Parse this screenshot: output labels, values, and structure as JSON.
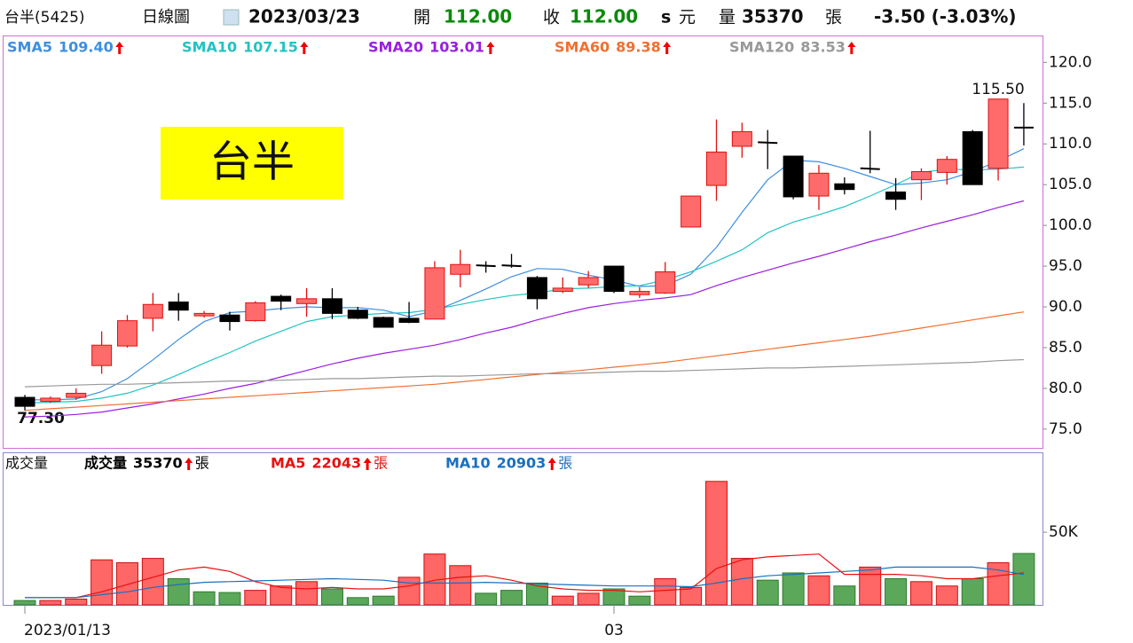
{
  "header": {
    "stock": "台半(5425)",
    "period": "日線圖",
    "date": "2023/03/23",
    "open_label": "開",
    "open": "112.00",
    "close_label": "收",
    "close": "112.00",
    "s": "s",
    "currency": "元",
    "volume_label": "量",
    "volume": "35370",
    "volume_unit": "張",
    "change": "-3.50 (-3.03%)"
  },
  "annotation": {
    "title": "台半",
    "high_label": "115.50",
    "low_label": "77.30"
  },
  "chart_data": [
    {
      "type": "candlestick",
      "up_color": "#ff6b6b",
      "up_border": "#e01010",
      "down_color": "#000000",
      "ylim": [
        72.7,
        123.3
      ],
      "yticks": [
        {
          "value": 75,
          "label": "75.0"
        },
        {
          "value": 80,
          "label": "80.0"
        },
        {
          "value": 85,
          "label": "85.0"
        },
        {
          "value": 90,
          "label": "90.0"
        },
        {
          "value": 95,
          "label": "95.0"
        },
        {
          "value": 100,
          "label": "100.0"
        },
        {
          "value": 105,
          "label": "105.0"
        },
        {
          "value": 110,
          "label": "110.0"
        },
        {
          "value": 115,
          "label": "115.0"
        },
        {
          "value": 120,
          "label": "120.0"
        }
      ],
      "open": [
        78.9,
        78.4,
        78.9,
        82.8,
        85.2,
        88.6,
        90.6,
        88.9,
        89.0,
        88.3,
        91.3,
        90.4,
        91.0,
        89.6,
        88.7,
        88.6,
        88.5,
        94.0,
        95.1,
        95.1,
        93.6,
        91.9,
        92.7,
        95.0,
        91.5,
        91.7,
        99.8,
        104.9,
        109.7,
        110.2,
        108.5,
        103.6,
        105.1,
        107.0,
        104.1,
        105.6,
        106.5,
        111.5,
        107.0,
        112.0
      ],
      "high": [
        79.2,
        79.0,
        80.0,
        87.0,
        89.0,
        91.7,
        91.7,
        89.5,
        89.4,
        90.7,
        91.5,
        92.3,
        92.3,
        90.0,
        88.8,
        90.6,
        95.6,
        97.0,
        95.6,
        96.5,
        93.8,
        93.6,
        94.4,
        95.0,
        92.4,
        95.5,
        103.6,
        113.0,
        112.6,
        111.7,
        108.5,
        107.4,
        105.9,
        111.6,
        105.8,
        107.0,
        108.5,
        111.7,
        115.5,
        115.0
      ],
      "low": [
        77.3,
        78.2,
        78.6,
        81.8,
        85.0,
        87.0,
        88.3,
        88.7,
        87.1,
        88.2,
        89.6,
        88.8,
        88.5,
        88.5,
        87.5,
        88.0,
        88.5,
        92.4,
        94.2,
        94.8,
        89.7,
        91.7,
        92.3,
        91.7,
        91.1,
        91.6,
        99.8,
        103.0,
        108.3,
        106.9,
        103.2,
        101.9,
        103.8,
        106.4,
        101.9,
        103.1,
        105.0,
        105.0,
        105.5,
        109.8
      ],
      "close": [
        77.8,
        78.8,
        79.4,
        85.3,
        88.3,
        90.3,
        89.6,
        89.2,
        88.2,
        90.5,
        90.7,
        91.0,
        89.2,
        88.6,
        87.5,
        88.1,
        94.8,
        95.2,
        95.0,
        95.0,
        91.0,
        92.3,
        93.6,
        91.9,
        91.9,
        94.3,
        103.6,
        109.0,
        111.5,
        110.1,
        103.5,
        106.4,
        104.4,
        106.9,
        103.2,
        106.6,
        108.1,
        105.0,
        115.5,
        112.0
      ],
      "series": [
        {
          "name": "SMA5",
          "color": "#3d8fe0",
          "last_label": "109.40",
          "values": [
            78.6,
            78.6,
            78.7,
            79.6,
            81.2,
            83.5,
            86.0,
            88.2,
            89.3,
            89.5,
            89.8,
            90.0,
            89.9,
            89.9,
            89.6,
            88.8,
            89.5,
            90.8,
            92.2,
            93.7,
            94.7,
            94.6,
            93.9,
            93.3,
            92.5,
            92.6,
            94.0,
            97.3,
            101.6,
            105.6,
            108.0,
            107.8,
            107.0,
            106.0,
            105.0,
            105.2,
            105.6,
            106.6,
            107.9,
            109.4
          ]
        },
        {
          "name": "SMA10",
          "color": "#22c3c3",
          "last_label": "107.15",
          "values": [
            78.2,
            78.3,
            78.4,
            78.8,
            79.4,
            80.4,
            81.7,
            83.1,
            84.4,
            85.8,
            87.0,
            88.2,
            88.8,
            89.0,
            89.2,
            89.3,
            89.7,
            90.3,
            90.9,
            91.4,
            91.7,
            92.2,
            92.3,
            92.5,
            92.6,
            93.3,
            94.3,
            95.6,
            97.0,
            99.1,
            100.4,
            101.3,
            102.3,
            103.6,
            105.0,
            106.5,
            106.9,
            106.8,
            106.9,
            107.15
          ]
        },
        {
          "name": "SMA20",
          "color": "#9a1ee0",
          "last_label": "103.01",
          "values": [
            76.5,
            76.6,
            76.8,
            77.1,
            77.6,
            78.1,
            78.7,
            79.3,
            80.0,
            80.6,
            81.4,
            82.2,
            83.0,
            83.7,
            84.3,
            84.8,
            85.3,
            86.0,
            86.8,
            87.5,
            88.4,
            89.2,
            89.9,
            90.4,
            90.8,
            91.1,
            91.5,
            92.6,
            93.6,
            94.5,
            95.4,
            96.2,
            97.1,
            98.0,
            98.8,
            99.7,
            100.5,
            101.3,
            102.2,
            103.01
          ]
        },
        {
          "name": "SMA60",
          "color": "#f07030",
          "last_label": "89.38",
          "values": [
            77.3,
            77.5,
            77.7,
            77.9,
            78.1,
            78.3,
            78.5,
            78.7,
            78.9,
            79.1,
            79.3,
            79.5,
            79.7,
            79.9,
            80.1,
            80.3,
            80.5,
            80.8,
            81.1,
            81.4,
            81.7,
            82.0,
            82.3,
            82.6,
            82.9,
            83.2,
            83.6,
            84.0,
            84.4,
            84.8,
            85.2,
            85.6,
            86.0,
            86.4,
            86.9,
            87.4,
            87.9,
            88.4,
            88.9,
            89.38
          ]
        },
        {
          "name": "SMA120",
          "color": "#999999",
          "last_label": "83.53",
          "values": [
            80.2,
            80.3,
            80.4,
            80.5,
            80.5,
            80.6,
            80.7,
            80.8,
            80.9,
            80.9,
            81.0,
            81.1,
            81.2,
            81.2,
            81.3,
            81.4,
            81.5,
            81.5,
            81.6,
            81.7,
            81.8,
            81.8,
            81.9,
            82.0,
            82.1,
            82.1,
            82.2,
            82.3,
            82.4,
            82.5,
            82.5,
            82.6,
            82.7,
            82.8,
            82.9,
            83.0,
            83.1,
            83.2,
            83.4,
            83.53
          ]
        }
      ]
    },
    {
      "type": "bar",
      "panel_label": "成交量",
      "categories": [
        "2023/01/13",
        null,
        null,
        null,
        null,
        null,
        null,
        null,
        null,
        null,
        null,
        null,
        null,
        null,
        null,
        null,
        null,
        null,
        null,
        null,
        null,
        null,
        null,
        "03",
        null,
        null,
        null,
        null,
        null,
        null,
        null,
        null,
        null,
        null,
        null,
        null,
        null,
        null,
        null,
        null
      ],
      "ylim": [
        0,
        105000
      ],
      "yticks": [
        {
          "value": 50000,
          "label": "50K"
        }
      ],
      "colors": [
        "#5ba85b",
        "#ff6666",
        "#ff6666",
        "#ff6666",
        "#ff6666",
        "#ff6666",
        "#5ba85b",
        "#5ba85b",
        "#5ba85b",
        "#ff6666",
        "#ff6666",
        "#ff6666",
        "#5ba85b",
        "#5ba85b",
        "#5ba85b",
        "#ff6666",
        "#ff6666",
        "#ff6666",
        "#5ba85b",
        "#5ba85b",
        "#5ba85b",
        "#ff6666",
        "#ff6666",
        "#5ba85b",
        "#5ba85b",
        "#ff6666",
        "#ff6666",
        "#ff6666",
        "#ff6666",
        "#5ba85b",
        "#5ba85b",
        "#ff6666",
        "#5ba85b",
        "#ff6666",
        "#5ba85b",
        "#ff6666",
        "#ff6666",
        "#5ba85b",
        "#ff6666",
        "#5ba85b"
      ],
      "series": [
        {
          "name": "成交量",
          "color": "#000000",
          "last_label": "35370",
          "unit": "張",
          "values": [
            3000,
            3000,
            4000,
            31000,
            29000,
            32000,
            18000,
            9000,
            8500,
            10000,
            13000,
            16000,
            11000,
            5000,
            6000,
            19000,
            35000,
            27000,
            8000,
            10000,
            15000,
            6000,
            8000,
            11000,
            6000,
            18000,
            12000,
            85000,
            32000,
            17000,
            22000,
            20000,
            13000,
            26000,
            18000,
            16000,
            13000,
            18000,
            29000,
            35370
          ]
        },
        {
          "name": "MA5",
          "color": "#e81010",
          "last_label": "22043",
          "unit": "張",
          "values": [
            5000,
            5000,
            5000,
            9000,
            14000,
            19000,
            24000,
            26000,
            23000,
            16000,
            12000,
            11000,
            12000,
            11000,
            11000,
            13000,
            17000,
            19000,
            20000,
            17000,
            13000,
            11000,
            10000,
            10000,
            9000,
            10000,
            11000,
            25000,
            31000,
            33000,
            34000,
            35000,
            21000,
            21000,
            21000,
            20000,
            18000,
            18000,
            20000,
            22043
          ]
        },
        {
          "name": "MA10",
          "color": "#1a6fc0",
          "last_label": "20903",
          "unit": "張",
          "values": [
            5000,
            5000,
            5000,
            7000,
            9000,
            12000,
            14000,
            15500,
            16000,
            16500,
            17000,
            17500,
            18000,
            17500,
            17000,
            15000,
            15000,
            15000,
            15500,
            15000,
            14500,
            14000,
            13500,
            13000,
            13000,
            13000,
            12500,
            15000,
            18000,
            20000,
            21000,
            22000,
            23000,
            24000,
            26000,
            26000,
            26000,
            26000,
            24000,
            20903
          ]
        }
      ]
    }
  ]
}
